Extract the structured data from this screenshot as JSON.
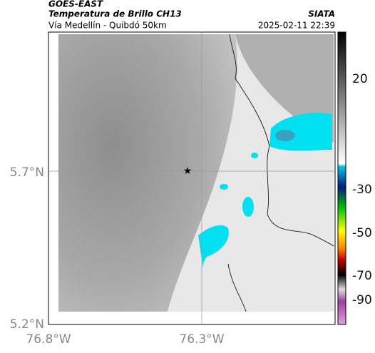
{
  "header": {
    "source": "GOES-EAST",
    "title": "Temperatura de Brillo CH13",
    "subtitle": "Vía Medellín - Quibdó 50km",
    "org": "SIATA",
    "timestamp": "2025-02-11 22:39"
  },
  "map": {
    "lat_ticks": [
      "5.7°N",
      "5.2°N"
    ],
    "lon_ticks": [
      "76.8°W",
      "76.3°W"
    ]
  },
  "colorbar": {
    "ticks": [
      "20",
      "-30",
      "-50",
      "-70",
      "-90"
    ]
  }
}
